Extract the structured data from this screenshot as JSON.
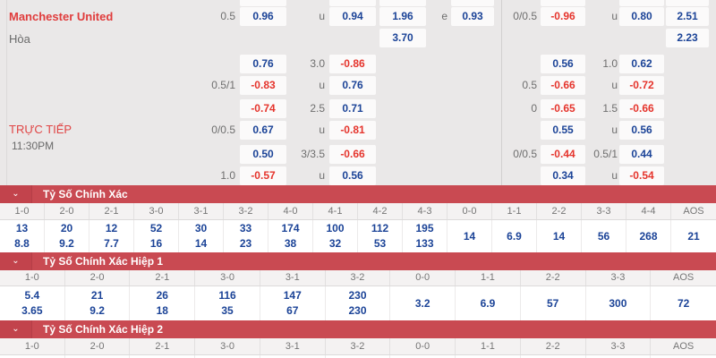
{
  "colors": {
    "accent_red": "#c94a52",
    "value_blue": "#1b4397",
    "value_red": "#e5342c",
    "team_red": "#e03c3c"
  },
  "match": {
    "home_team": "Manchester United",
    "draw_label": "Hòa",
    "live_label": "TRỰC TIẾP",
    "time": "11:30PM"
  },
  "odds": {
    "left": {
      "r1": {
        "hcp": "0.5",
        "v1": "0.96",
        "mid": "u",
        "v2": "0.94",
        "v3": "1.96",
        "e": "e",
        "v4": "0.93"
      },
      "r2": {
        "v3": "3.70"
      },
      "r3": {
        "v1": "0.76",
        "mid": "3.0",
        "v2": "-0.86"
      },
      "r4": {
        "hcp": "0.5/1",
        "v1": "-0.83",
        "mid": "u",
        "v2": "0.76"
      },
      "r5": {
        "v1": "-0.74",
        "mid": "2.5",
        "v2": "0.71"
      },
      "r6": {
        "hcp": "0/0.5",
        "v1": "0.67",
        "mid": "u",
        "v2": "-0.81"
      },
      "r7": {
        "v1": "0.50",
        "mid": "3/3.5",
        "v2": "-0.66"
      },
      "r8": {
        "hcp": "1.0",
        "v1": "-0.57",
        "mid": "u",
        "v2": "0.56"
      }
    },
    "right": {
      "r1": {
        "hcp": "0/0.5",
        "v1": "-0.96",
        "mid": "u",
        "v2": "0.80",
        "v3": "2.51"
      },
      "r2": {
        "v3": "2.23"
      },
      "r3": {
        "v1": "0.56",
        "mid": "1.0",
        "v2": "0.62"
      },
      "r4": {
        "hcp": "0.5",
        "v1": "-0.66",
        "mid": "u",
        "v2": "-0.72"
      },
      "r5": {
        "hcp": "0",
        "v1": "-0.65",
        "mid": "1.5",
        "v2": "-0.66"
      },
      "r6": {
        "v1": "0.55",
        "mid": "u",
        "v2": "0.56"
      },
      "r7": {
        "hcp": "0/0.5",
        "v1": "-0.44",
        "mid": "0.5/1",
        "v2": "0.44"
      },
      "r8": {
        "v1": "0.34",
        "mid": "u",
        "v2": "-0.54"
      }
    }
  },
  "sections": [
    {
      "title": "Tỷ Số Chính Xác",
      "columns": [
        "1-0",
        "2-0",
        "2-1",
        "3-0",
        "3-1",
        "3-2",
        "4-0",
        "4-1",
        "4-2",
        "4-3",
        "0-0",
        "1-1",
        "2-2",
        "3-3",
        "4-4",
        "AOS"
      ],
      "values": [
        [
          "13",
          "8.8"
        ],
        [
          "20",
          "9.2"
        ],
        [
          "12",
          "7.7"
        ],
        [
          "52",
          "16"
        ],
        [
          "30",
          "14"
        ],
        [
          "33",
          "23"
        ],
        [
          "174",
          "38"
        ],
        [
          "100",
          "32"
        ],
        [
          "112",
          "53"
        ],
        [
          "195",
          "133"
        ],
        [
          "14"
        ],
        [
          "6.9"
        ],
        [
          "14"
        ],
        [
          "56"
        ],
        [
          "268"
        ],
        [
          "21"
        ]
      ]
    },
    {
      "title": "Tỷ Số Chính Xác Hiệp 1",
      "columns": [
        "1-0",
        "2-0",
        "2-1",
        "3-0",
        "3-1",
        "3-2",
        "0-0",
        "1-1",
        "2-2",
        "3-3",
        "AOS"
      ],
      "values": [
        [
          "5.4",
          "3.65"
        ],
        [
          "21",
          "9.2"
        ],
        [
          "26",
          "18"
        ],
        [
          "116",
          "35"
        ],
        [
          "147",
          "67"
        ],
        [
          "230",
          "230"
        ],
        [
          "3.2"
        ],
        [
          "6.9"
        ],
        [
          "57"
        ],
        [
          "300"
        ],
        [
          "72"
        ]
      ]
    },
    {
      "title": "Tỷ Số Chính Xác Hiệp 2",
      "columns": [
        "1-0",
        "2-0",
        "2-1",
        "3-0",
        "3-1",
        "3-2",
        "0-0",
        "1-1",
        "2-2",
        "3-3",
        "AOS"
      ],
      "values": []
    }
  ]
}
